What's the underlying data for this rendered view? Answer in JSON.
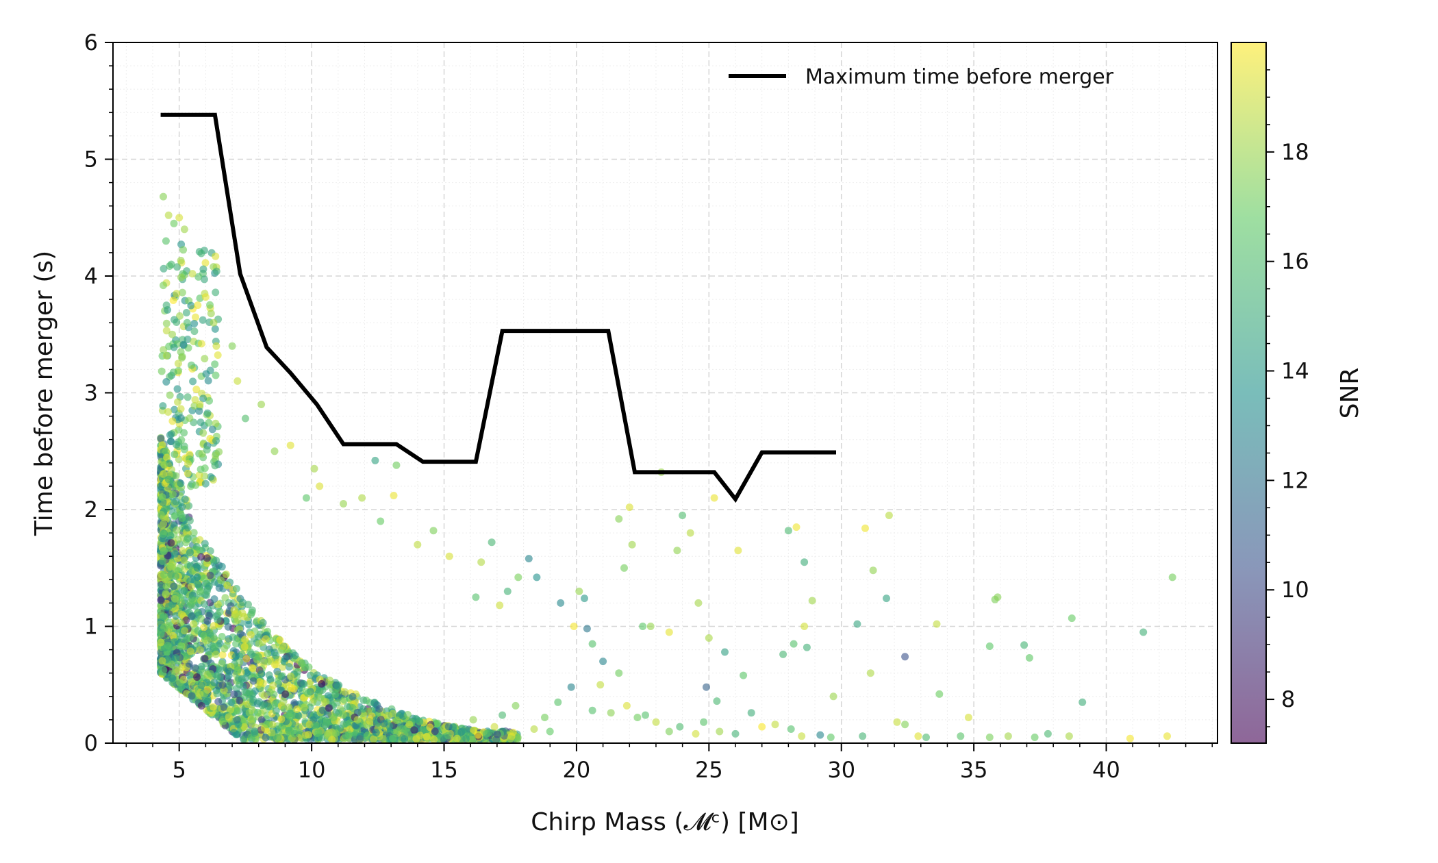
{
  "chart_data": {
    "type": "scatter",
    "xlabel": "Chirp Mass (𝓜ᶜ) [M⊙]",
    "ylabel": "Time before merger (s)",
    "xlim": [
      2.5,
      44.2
    ],
    "ylim": [
      0,
      6
    ],
    "xticks": [
      5,
      10,
      15,
      20,
      25,
      30,
      35,
      40
    ],
    "yticks": [
      0,
      1,
      2,
      3,
      4,
      5,
      6
    ],
    "grid": true,
    "legend": {
      "position": "top-right",
      "entries": [
        "Maximum time before merger"
      ]
    },
    "colorbar": {
      "label": "SNR",
      "range": [
        7.2,
        20.0
      ],
      "ticks": [
        8,
        10,
        12,
        14,
        16,
        18
      ],
      "colormap": [
        "#440154",
        "#3b528b",
        "#21918c",
        "#5ec962",
        "#fde725"
      ],
      "alpha": 0.6
    },
    "series": [
      {
        "name": "Maximum time before merger",
        "type": "line",
        "color": "#000000",
        "x": [
          4.3,
          6.35,
          7.3,
          8.3,
          9.2,
          10.2,
          11.2,
          12.2,
          13.2,
          14.2,
          15.2,
          16.2,
          17.2,
          18.2,
          19.2,
          20.2,
          21.2,
          22.2,
          23.2,
          24.2,
          25.2,
          26.0,
          27.0,
          28.0,
          29.0,
          29.8
        ],
        "y": [
          5.38,
          5.38,
          4.02,
          3.39,
          3.17,
          2.9,
          2.56,
          2.56,
          2.56,
          2.41,
          2.41,
          2.41,
          3.53,
          3.53,
          3.53,
          3.53,
          3.53,
          2.32,
          2.32,
          2.32,
          2.32,
          2.09,
          2.49,
          2.49,
          2.49,
          2.49
        ]
      }
    ],
    "scatter_points": [
      [
        4.4,
        4.68,
        17.6
      ],
      [
        4.6,
        4.52,
        18.6
      ],
      [
        4.8,
        4.45,
        17.0
      ],
      [
        5.0,
        4.5,
        19.2
      ],
      [
        4.5,
        4.3,
        16.4
      ],
      [
        4.7,
        4.1,
        15.8
      ],
      [
        5.2,
        4.4,
        18.1
      ],
      [
        4.4,
        3.92,
        17.3
      ],
      [
        4.9,
        3.85,
        19.0
      ],
      [
        5.5,
        4.02,
        18.8
      ],
      [
        6.0,
        3.82,
        19.5
      ],
      [
        6.3,
        3.6,
        18.3
      ],
      [
        5.7,
        3.75,
        19.7
      ],
      [
        5.3,
        3.6,
        15.9
      ],
      [
        5.1,
        3.3,
        17.7
      ],
      [
        6.4,
        3.4,
        19.1
      ],
      [
        7.0,
        3.4,
        17.5
      ],
      [
        7.2,
        3.1,
        18.9
      ],
      [
        7.5,
        2.78,
        16.1
      ],
      [
        8.1,
        2.9,
        18.0
      ],
      [
        8.6,
        2.5,
        17.8
      ],
      [
        9.2,
        2.55,
        19.4
      ],
      [
        10.1,
        2.35,
        18.2
      ],
      [
        12.4,
        2.42,
        14.5
      ],
      [
        13.2,
        2.38,
        17.1
      ],
      [
        9.8,
        2.1,
        16.5
      ],
      [
        10.3,
        2.2,
        19.3
      ],
      [
        11.2,
        2.05,
        17.9
      ],
      [
        11.9,
        2.1,
        18.4
      ],
      [
        12.6,
        1.9,
        16.9
      ],
      [
        13.1,
        2.12,
        19.6
      ],
      [
        14.0,
        1.7,
        18.7
      ],
      [
        14.6,
        1.82,
        17.4
      ],
      [
        15.2,
        1.6,
        19.2
      ],
      [
        16.4,
        1.55,
        18.5
      ],
      [
        16.2,
        1.25,
        16.2
      ],
      [
        16.8,
        1.72,
        15.6
      ],
      [
        17.1,
        1.18,
        19.0
      ],
      [
        17.4,
        1.3,
        15.4
      ],
      [
        18.2,
        1.58,
        12.9
      ],
      [
        18.5,
        1.42,
        13.6
      ],
      [
        17.8,
        1.42,
        17.3
      ],
      [
        19.4,
        1.2,
        13.1
      ],
      [
        19.9,
        1.0,
        19.8
      ],
      [
        20.1,
        1.3,
        17.9
      ],
      [
        20.3,
        1.24,
        14.0
      ],
      [
        20.4,
        0.98,
        12.3
      ],
      [
        20.6,
        0.85,
        16.3
      ],
      [
        21.0,
        0.7,
        12.9
      ],
      [
        21.6,
        0.6,
        17.1
      ],
      [
        21.6,
        1.92,
        17.6
      ],
      [
        21.8,
        1.5,
        17.2
      ],
      [
        22.0,
        2.02,
        19.3
      ],
      [
        22.1,
        1.7,
        18.1
      ],
      [
        22.5,
        1.0,
        16.6
      ],
      [
        22.8,
        1.0,
        17.9
      ],
      [
        23.2,
        2.32,
        18.0
      ],
      [
        23.5,
        0.95,
        19.5
      ],
      [
        23.8,
        1.65,
        17.8
      ],
      [
        24.0,
        1.95,
        16.0
      ],
      [
        24.3,
        1.8,
        18.6
      ],
      [
        24.6,
        1.2,
        18.2
      ],
      [
        25.0,
        0.9,
        18.3
      ],
      [
        25.2,
        2.1,
        19.6
      ],
      [
        26.1,
        1.65,
        19.4
      ],
      [
        27.8,
        0.76,
        15.6
      ],
      [
        28.0,
        1.82,
        15.8
      ],
      [
        28.3,
        1.85,
        19.7
      ],
      [
        28.2,
        0.85,
        16.3
      ],
      [
        28.7,
        0.82,
        15.3
      ],
      [
        28.6,
        1.55,
        15.1
      ],
      [
        28.6,
        1.0,
        19.1
      ],
      [
        28.9,
        1.22,
        18.1
      ],
      [
        29.7,
        0.4,
        18.0
      ],
      [
        30.6,
        1.02,
        14.7
      ],
      [
        30.9,
        1.84,
        19.7
      ],
      [
        31.1,
        0.6,
        18.4
      ],
      [
        31.2,
        1.48,
        17.8
      ],
      [
        31.7,
        1.24,
        14.5
      ],
      [
        31.8,
        1.95,
        18.6
      ],
      [
        32.4,
        0.74,
        10.4
      ],
      [
        33.6,
        1.02,
        18.8
      ],
      [
        33.7,
        0.42,
        17.0
      ],
      [
        34.8,
        0.22,
        19.2
      ],
      [
        35.6,
        0.83,
        16.6
      ],
      [
        35.8,
        1.23,
        17.4
      ],
      [
        35.9,
        1.25,
        17.6
      ],
      [
        36.9,
        0.84,
        15.5
      ],
      [
        37.1,
        0.73,
        16.7
      ],
      [
        38.7,
        1.07,
        16.9
      ],
      [
        39.1,
        0.35,
        15.1
      ],
      [
        40.9,
        0.04,
        19.8
      ],
      [
        41.4,
        0.95,
        15.3
      ],
      [
        42.3,
        0.06,
        19.6
      ],
      [
        42.5,
        1.42,
        17.2
      ],
      [
        24.9,
        0.48,
        11.2
      ],
      [
        25.6,
        0.78,
        14.4
      ],
      [
        25.3,
        0.36,
        15.7
      ],
      [
        26.3,
        0.58,
        16.5
      ],
      [
        26.6,
        0.26,
        15.1
      ],
      [
        27.0,
        0.14,
        19.9
      ],
      [
        27.5,
        0.16,
        18.8
      ],
      [
        28.1,
        0.12,
        16.2
      ],
      [
        28.5,
        0.06,
        18.9
      ],
      [
        29.2,
        0.07,
        13.0
      ],
      [
        29.6,
        0.05,
        16.7
      ],
      [
        30.8,
        0.06,
        15.5
      ],
      [
        32.1,
        0.18,
        18.9
      ],
      [
        32.4,
        0.16,
        17.5
      ],
      [
        32.9,
        0.06,
        19.4
      ],
      [
        33.2,
        0.05,
        15.9
      ],
      [
        34.5,
        0.06,
        16.4
      ],
      [
        35.6,
        0.05,
        17.3
      ],
      [
        36.3,
        0.06,
        18.2
      ],
      [
        37.3,
        0.05,
        16.9
      ],
      [
        37.8,
        0.08,
        15.7
      ],
      [
        38.6,
        0.06,
        18.3
      ],
      [
        22.3,
        0.22,
        17.1
      ],
      [
        21.9,
        0.32,
        19.3
      ],
      [
        22.6,
        0.24,
        16.2
      ],
      [
        23.0,
        0.18,
        18.8
      ],
      [
        23.5,
        0.1,
        17.4
      ],
      [
        23.9,
        0.14,
        15.9
      ],
      [
        24.5,
        0.08,
        19.1
      ],
      [
        24.8,
        0.18,
        16.4
      ],
      [
        25.4,
        0.1,
        18.1
      ],
      [
        26.0,
        0.08,
        15.4
      ],
      [
        20.9,
        0.5,
        18.8
      ],
      [
        20.6,
        0.28,
        16.2
      ],
      [
        21.3,
        0.26,
        17.7
      ],
      [
        19.8,
        0.48,
        12.9
      ],
      [
        19.3,
        0.35,
        16.4
      ],
      [
        18.8,
        0.22,
        17.2
      ],
      [
        18.4,
        0.12,
        18.6
      ],
      [
        19.0,
        0.1,
        16.8
      ],
      [
        17.7,
        0.32,
        17.5
      ],
      [
        17.2,
        0.24,
        15.8
      ],
      [
        16.9,
        0.14,
        19.0
      ],
      [
        16.6,
        0.08,
        16.2
      ],
      [
        16.1,
        0.2,
        17.9
      ],
      [
        15.8,
        0.12,
        14.5
      ]
    ]
  }
}
